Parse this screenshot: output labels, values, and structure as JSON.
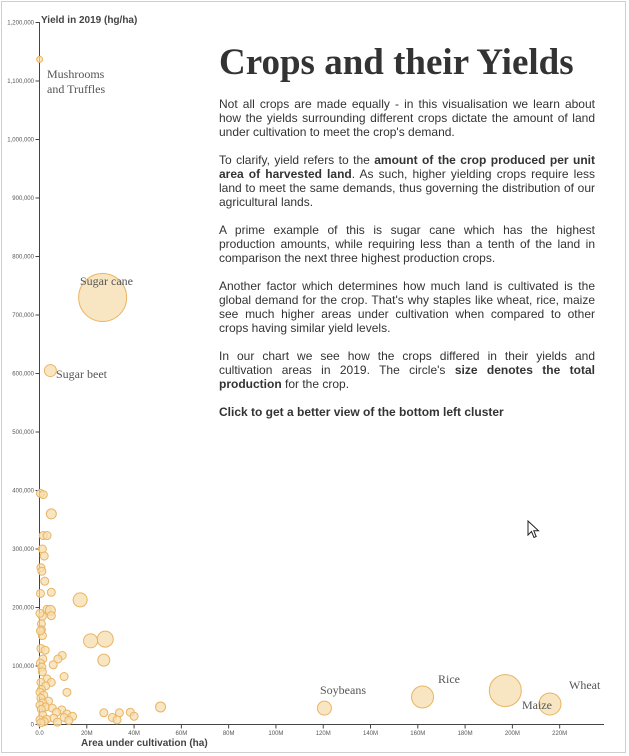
{
  "panel": {
    "title": "Crops and their Yields",
    "p1": "Not all crops are made equally - in this visualisation we learn about how the yields surrounding different crops dictate the amount of land under cultivation to meet the crop's demand.",
    "p2_pre": "To clarify, yield refers to the ",
    "p2_bold": "amount of the crop produced per unit area of harvested land",
    "p2_post": ". As such, higher yielding crops require less land to meet the same demands, thus governing the distribution of our agricultural lands.",
    "p3": "A prime example of this is sugar cane which has the highest production amounts, while requiring less than a tenth of the land in comparison the next three highest production crops.",
    "p4": "Another factor which determines how much land is cultivated is the global demand for the crop. That's why staples like wheat, rice, maize see much higher areas under cultivation when compared to other crops having similar yield levels.",
    "p5_pre": "In our chart we see how the crops differed in their yields and cultivation areas in 2019. The circle's ",
    "p5_bold": "size denotes the total production",
    "p5_post": " for the crop.",
    "cta": "Click to get a better view of the bottom left cluster"
  },
  "chart_data": {
    "type": "scatter",
    "xlabel": "Area under cultivation (ha)",
    "ylabel": "Yield in 2019 (hg/ha)",
    "xlim": [
      0,
      225000000
    ],
    "ylim": [
      0,
      1200000
    ],
    "x_ticks": [
      {
        "v": 0,
        "label": "0.0"
      },
      {
        "v": 20000000,
        "label": "20M"
      },
      {
        "v": 40000000,
        "label": "40M"
      },
      {
        "v": 60000000,
        "label": "60M"
      },
      {
        "v": 80000000,
        "label": "80M"
      },
      {
        "v": 100000000,
        "label": "100M"
      },
      {
        "v": 120000000,
        "label": "120M"
      },
      {
        "v": 140000000,
        "label": "140M"
      },
      {
        "v": 160000000,
        "label": "160M"
      },
      {
        "v": 180000000,
        "label": "180M"
      },
      {
        "v": 200000000,
        "label": "200M"
      },
      {
        "v": 220000000,
        "label": "220M"
      }
    ],
    "y_ticks": [
      {
        "v": 0,
        "label": "0"
      },
      {
        "v": 100000,
        "label": "100,000"
      },
      {
        "v": 200000,
        "label": "200,000"
      },
      {
        "v": 300000,
        "label": "300,000"
      },
      {
        "v": 400000,
        "label": "400,000"
      },
      {
        "v": 500000,
        "label": "500,000"
      },
      {
        "v": 600000,
        "label": "600,000"
      },
      {
        "v": 700000,
        "label": "700,000"
      },
      {
        "v": 800000,
        "label": "800,000"
      },
      {
        "v": 900000,
        "label": "900,000"
      },
      {
        "v": 1000000,
        "label": "1,000,000"
      },
      {
        "v": 1100000,
        "label": "1,100,000"
      },
      {
        "v": 1200000,
        "label": "1,200,000"
      }
    ],
    "bubble_fill": "#f5deae",
    "bubble_stroke": "#eab464",
    "labelled": [
      {
        "name": "Mushrooms and Truffles",
        "x": 60000,
        "y": 1137000,
        "r": 3
      },
      {
        "name": "Sugar cane",
        "x": 26700000,
        "y": 730000,
        "r": 24
      },
      {
        "name": "Sugar beet",
        "x": 4600000,
        "y": 605000,
        "r": 6
      },
      {
        "name": "Soybeans",
        "x": 120500000,
        "y": 28000,
        "r": 7
      },
      {
        "name": "Rice",
        "x": 162000000,
        "y": 47000,
        "r": 11
      },
      {
        "name": "Maize",
        "x": 197000000,
        "y": 58000,
        "r": 16
      },
      {
        "name": "Wheat",
        "x": 215900000,
        "y": 35000,
        "r": 11
      }
    ],
    "points": [
      {
        "x": 400000,
        "y": 395000,
        "r": 4
      },
      {
        "x": 1600000,
        "y": 393000,
        "r": 4
      },
      {
        "x": 5000000,
        "y": 360000,
        "r": 5
      },
      {
        "x": 1600000,
        "y": 323000,
        "r": 4
      },
      {
        "x": 3200000,
        "y": 323000,
        "r": 4
      },
      {
        "x": 1200000,
        "y": 300000,
        "r": 4
      },
      {
        "x": 2000000,
        "y": 288000,
        "r": 4
      },
      {
        "x": 600000,
        "y": 268000,
        "r": 4
      },
      {
        "x": 1000000,
        "y": 262000,
        "r": 4
      },
      {
        "x": 2200000,
        "y": 245000,
        "r": 4
      },
      {
        "x": 5000000,
        "y": 226000,
        "r": 4
      },
      {
        "x": 400000,
        "y": 224000,
        "r": 4
      },
      {
        "x": 17200000,
        "y": 213000,
        "r": 7
      },
      {
        "x": 3200000,
        "y": 197000,
        "r": 4
      },
      {
        "x": 4600000,
        "y": 195000,
        "r": 5
      },
      {
        "x": 5000000,
        "y": 186000,
        "r": 4
      },
      {
        "x": 1200000,
        "y": 185000,
        "r": 4
      },
      {
        "x": 200000,
        "y": 190000,
        "r": 4
      },
      {
        "x": 800000,
        "y": 172000,
        "r": 4
      },
      {
        "x": 800000,
        "y": 162000,
        "r": 4
      },
      {
        "x": 1200000,
        "y": 152000,
        "r": 4
      },
      {
        "x": 27800000,
        "y": 146000,
        "r": 8
      },
      {
        "x": 21600000,
        "y": 143000,
        "r": 7
      },
      {
        "x": 600000,
        "y": 130000,
        "r": 4
      },
      {
        "x": 2400000,
        "y": 127000,
        "r": 4
      },
      {
        "x": 9600000,
        "y": 118000,
        "r": 4
      },
      {
        "x": 7800000,
        "y": 112000,
        "r": 4
      },
      {
        "x": 27200000,
        "y": 110000,
        "r": 6
      },
      {
        "x": 1400000,
        "y": 112000,
        "r": 4
      },
      {
        "x": 400000,
        "y": 105000,
        "r": 4
      },
      {
        "x": 5800000,
        "y": 102000,
        "r": 4
      },
      {
        "x": 1000000,
        "y": 98000,
        "r": 4
      },
      {
        "x": 1200000,
        "y": 90000,
        "r": 4
      },
      {
        "x": 10400000,
        "y": 82000,
        "r": 4
      },
      {
        "x": 3200000,
        "y": 78000,
        "r": 4
      },
      {
        "x": 5000000,
        "y": 72000,
        "r": 4
      },
      {
        "x": 600000,
        "y": 72000,
        "r": 4
      },
      {
        "x": 2600000,
        "y": 66000,
        "r": 4
      },
      {
        "x": 800000,
        "y": 60000,
        "r": 4
      },
      {
        "x": 200000,
        "y": 55000,
        "r": 4
      },
      {
        "x": 11600000,
        "y": 55000,
        "r": 4
      },
      {
        "x": 1800000,
        "y": 50000,
        "r": 4
      },
      {
        "x": 600000,
        "y": 45000,
        "r": 4
      },
      {
        "x": 3800000,
        "y": 40000,
        "r": 4
      },
      {
        "x": 1400000,
        "y": 37000,
        "r": 4
      },
      {
        "x": 200000,
        "y": 33000,
        "r": 4
      },
      {
        "x": 2600000,
        "y": 30000,
        "r": 4
      },
      {
        "x": 51200000,
        "y": 30000,
        "r": 5
      },
      {
        "x": 5400000,
        "y": 28000,
        "r": 4
      },
      {
        "x": 800000,
        "y": 26000,
        "r": 4
      },
      {
        "x": 9400000,
        "y": 25000,
        "r": 4
      },
      {
        "x": 7200000,
        "y": 21000,
        "r": 4
      },
      {
        "x": 27200000,
        "y": 20000,
        "r": 4
      },
      {
        "x": 38400000,
        "y": 21000,
        "r": 4
      },
      {
        "x": 33800000,
        "y": 20000,
        "r": 4
      },
      {
        "x": 11600000,
        "y": 18000,
        "r": 4
      },
      {
        "x": 1400000,
        "y": 16000,
        "r": 4
      },
      {
        "x": 14000000,
        "y": 14000,
        "r": 4
      },
      {
        "x": 30800000,
        "y": 12000,
        "r": 4
      },
      {
        "x": 40000000,
        "y": 14000,
        "r": 4
      },
      {
        "x": 10400000,
        "y": 12000,
        "r": 4
      },
      {
        "x": 6000000,
        "y": 11000,
        "r": 4
      },
      {
        "x": 3000000,
        "y": 9000,
        "r": 4
      },
      {
        "x": 200000,
        "y": 8000,
        "r": 4
      },
      {
        "x": 12400000,
        "y": 7000,
        "r": 4
      },
      {
        "x": 2000000,
        "y": 5000,
        "r": 4
      },
      {
        "x": 7600000,
        "y": 4000,
        "r": 4
      },
      {
        "x": 600000,
        "y": 3000,
        "r": 4
      },
      {
        "x": 32800000,
        "y": 8000,
        "r": 4
      },
      {
        "x": 400000,
        "y": 160000,
        "r": 4
      }
    ]
  }
}
